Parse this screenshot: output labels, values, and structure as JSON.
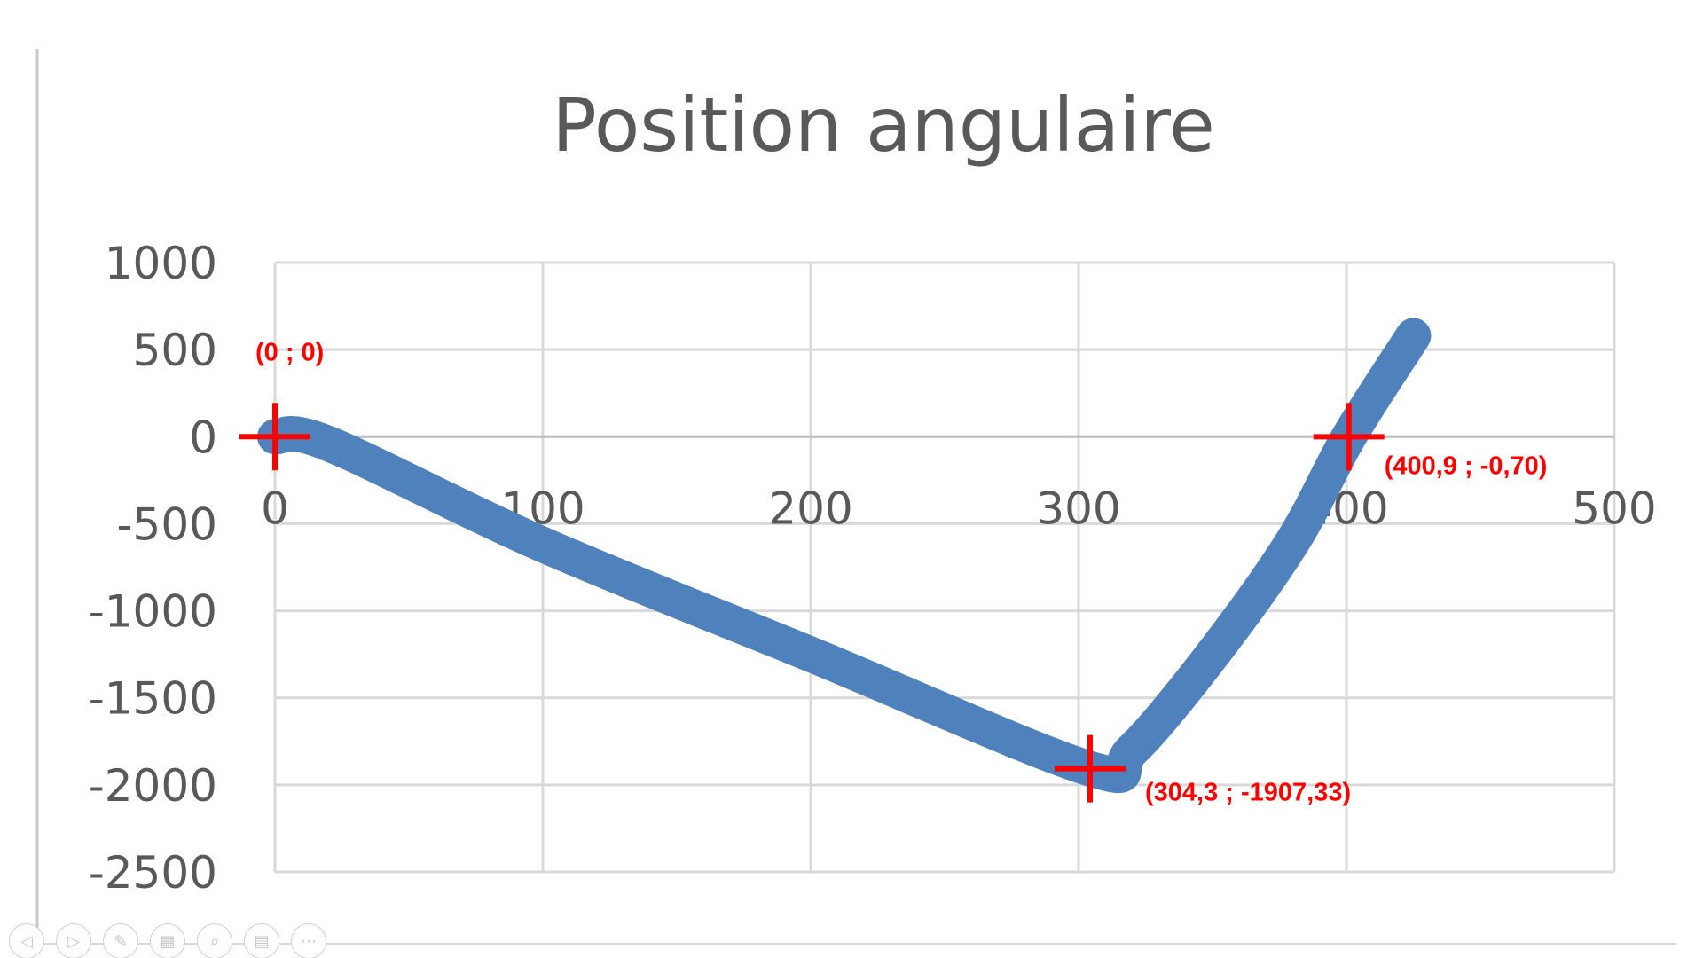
{
  "chart_data": {
    "type": "line",
    "title": "Position angulaire",
    "xlabel": "",
    "ylabel": "",
    "xlim": [
      0,
      500
    ],
    "ylim": [
      -2500,
      1000
    ],
    "x_ticks": [
      "0",
      "100",
      "200",
      "300",
      "400",
      "500"
    ],
    "y_ticks": [
      "1000",
      "500",
      "0",
      "-500",
      "-1000",
      "-1500",
      "-2000",
      "-2500"
    ],
    "grid": true,
    "legend": "none",
    "series_color": "#4f81bd",
    "series": [
      {
        "x": [
          0,
          20,
          100,
          200,
          304.3,
          320,
          350,
          380,
          400.9,
          425
        ],
        "y": [
          0,
          -40,
          -620,
          -1250,
          -1907.33,
          -1800,
          -1250,
          -600,
          -0.7,
          580
        ]
      }
    ],
    "annotations": [
      {
        "x": 0,
        "y": 0,
        "label": "(0 ; 0)",
        "color": "#ff0000"
      },
      {
        "x": 304.3,
        "y": -1907.33,
        "label": "(304,3 ; -1907,33)",
        "color": "#ff0000"
      },
      {
        "x": 400.9,
        "y": -0.7,
        "label": "(400,9 ; -0,70)",
        "color": "#ff0000"
      }
    ]
  },
  "toolbar": {
    "buttons": [
      {
        "name": "previous-slide-button",
        "icon": "arrow-left-icon",
        "glyph": "◁"
      },
      {
        "name": "next-slide-button",
        "icon": "arrow-right-icon",
        "glyph": "▷"
      },
      {
        "name": "pen-button",
        "icon": "pen-icon",
        "glyph": "✎"
      },
      {
        "name": "slides-button",
        "icon": "slides-icon",
        "glyph": "▦"
      },
      {
        "name": "zoom-button",
        "icon": "magnifier-icon",
        "glyph": "⌕"
      },
      {
        "name": "subtitles-button",
        "icon": "subtitles-icon",
        "glyph": "▤"
      },
      {
        "name": "more-options-button",
        "icon": "more-icon",
        "glyph": "⋯"
      }
    ]
  }
}
